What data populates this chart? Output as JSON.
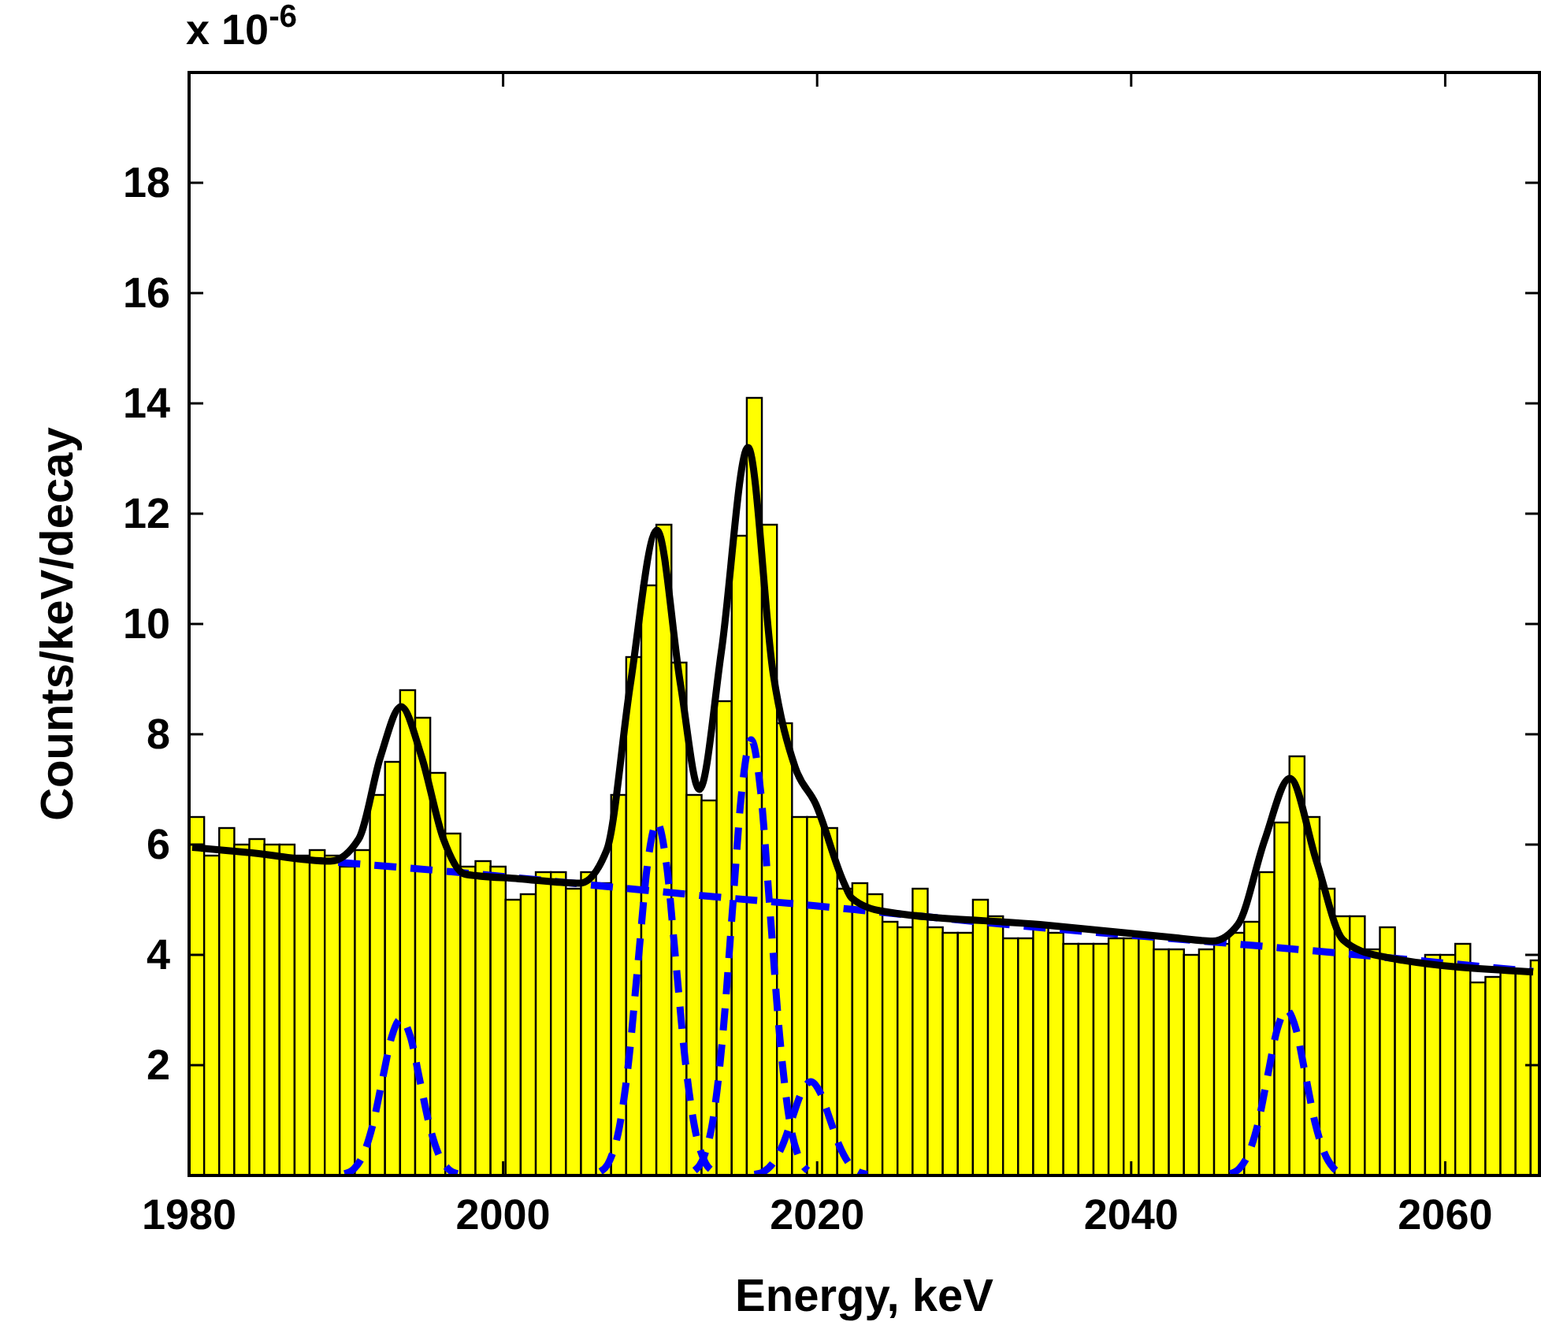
{
  "chart_data": {
    "type": "histogram",
    "xlabel": "Energy, keV",
    "ylabel": "Counts/keV/decay",
    "annotations": [
      "x 10$^{-6}$"
    ],
    "color": "#ffff00",
    "bins": [
      1980,
      1980.96,
      1981.92,
      1982.88,
      1983.84,
      1984.8,
      1985.76,
      1986.72,
      1987.68,
      1988.64,
      1989.6,
      1990.56,
      1991.52,
      1992.48,
      1993.44,
      1994.4,
      1995.36,
      1996.32,
      1997.28,
      1998.24,
      1999.2,
      2000.16,
      2001.12,
      2002.08,
      2003.04,
      2004,
      2004.96,
      2005.92,
      2006.88,
      2007.84,
      2008.8,
      2009.76,
      2010.72,
      2011.68,
      2012.64,
      2013.6,
      2014.56,
      2015.52,
      2016.48,
      2017.44,
      2018.4,
      2019.36,
      2020.32,
      2021.28,
      2022.24,
      2023.2,
      2024.16,
      2025.12,
      2026.08,
      2027.04,
      2028,
      2028.96,
      2029.92,
      2030.88,
      2031.84,
      2032.8,
      2033.76,
      2034.72,
      2035.68,
      2036.64,
      2037.6,
      2038.56,
      2039.52,
      2040.48,
      2041.44,
      2042.4,
      2043.36,
      2044.32,
      2045.28,
      2046.24,
      2047.2,
      2048.16,
      2049.12,
      2050.08,
      2051.04,
      2052,
      2052.96,
      2053.92,
      2054.88,
      2055.84,
      2056.8,
      2057.76,
      2058.72,
      2059.68,
      2060.64,
      2061.6,
      2062.56,
      2063.52,
      2064.48,
      2065.44,
      2066
    ],
    "values": [
      6.5,
      5.8,
      6.3,
      6.0,
      6.1,
      6.0,
      6.0,
      5.8,
      5.9,
      5.8,
      5.6,
      5.9,
      6.9,
      7.5,
      8.8,
      8.3,
      7.3,
      6.2,
      5.6,
      5.7,
      5.6,
      5.0,
      5.1,
      5.5,
      5.5,
      5.2,
      5.5,
      5.3,
      6.9,
      9.4,
      10.7,
      11.8,
      9.3,
      6.9,
      6.8,
      8.6,
      11.6,
      14.1,
      11.8,
      8.2,
      6.5,
      6.5,
      6.3,
      5.2,
      5.3,
      5.1,
      4.6,
      4.5,
      5.2,
      4.5,
      4.4,
      4.4,
      5.0,
      4.7,
      4.3,
      4.3,
      4.5,
      4.4,
      4.2,
      4.2,
      4.2,
      4.3,
      4.3,
      4.3,
      4.1,
      4.1,
      4.0,
      4.1,
      4.2,
      4.4,
      4.6,
      5.5,
      6.4,
      7.6,
      6.5,
      5.2,
      4.7,
      4.7,
      4.1,
      4.5,
      3.9,
      3.9,
      4.0,
      4.0,
      4.2,
      3.5,
      3.6,
      3.7,
      3.7,
      3.9
    ],
    "series": [
      {
        "type": "line",
        "color": "#0000ff",
        "line_style": "dashed",
        "x": [
          1989.5,
          1997,
          2006.6,
          2013.2,
          2019.9,
          2022.4,
          2034,
          2047.8,
          2065.6
        ],
        "values": [
          5.68,
          5.5,
          5.24,
          5.06,
          4.89,
          4.82,
          4.5,
          4.17,
          3.7
        ]
      },
      {
        "type": "line",
        "color": "#0000ff",
        "line_style": "dashed",
        "x": [
          1989.9,
          1990.5,
          1991.1,
          1991.7,
          1992.3,
          1992.9,
          1993.5,
          1994.1,
          1994.7,
          1995.3,
          1995.9,
          1996.5,
          1997.1
        ],
        "values": [
          0.03,
          0.12,
          0.38,
          0.92,
          1.72,
          2.51,
          2.84,
          2.51,
          1.72,
          0.92,
          0.38,
          0.12,
          0.03
        ]
      },
      {
        "type": "line",
        "color": "#0000ff",
        "line_style": "dashed",
        "x": [
          2006.2,
          2006.8,
          2007.4,
          2008,
          2008.6,
          2009.2,
          2009.8,
          2010.4,
          2011,
          2011.6,
          2012.2,
          2012.8,
          2013.4
        ],
        "values": [
          0.07,
          0.28,
          0.87,
          2.08,
          3.88,
          5.65,
          6.4,
          5.65,
          3.88,
          2.08,
          0.87,
          0.28,
          0.07
        ]
      },
      {
        "type": "line",
        "color": "#0000ff",
        "line_style": "dashed",
        "x": [
          2012.2,
          2012.8,
          2013.4,
          2014,
          2014.6,
          2015.2,
          2015.8,
          2016.4,
          2017,
          2017.6,
          2018.2,
          2018.8,
          2019.4
        ],
        "values": [
          0.09,
          0.35,
          1.07,
          2.57,
          4.79,
          6.97,
          7.9,
          6.97,
          4.79,
          2.57,
          1.07,
          0.35,
          0.09
        ]
      },
      {
        "type": "line",
        "color": "#0000ff",
        "line_style": "dashed",
        "x": [
          2016,
          2016.6,
          2017.2,
          2017.8,
          2018.4,
          2019,
          2019.6,
          2020.2,
          2020.8,
          2021.4,
          2022,
          2022.6,
          2023.2
        ],
        "values": [
          0.02,
          0.07,
          0.23,
          0.55,
          1.03,
          1.5,
          1.7,
          1.5,
          1.03,
          0.55,
          0.23,
          0.07,
          0.02
        ]
      },
      {
        "type": "line",
        "color": "#0000ff",
        "line_style": "dashed",
        "x": [
          2046.3,
          2046.9,
          2047.5,
          2048.1,
          2048.7,
          2049.3,
          2049.9,
          2050.5,
          2051.1,
          2051.7,
          2052.3,
          2052.9,
          2053.5
        ],
        "values": [
          0.03,
          0.13,
          0.41,
          0.97,
          1.82,
          2.65,
          3.0,
          2.65,
          1.82,
          0.97,
          0.41,
          0.13,
          0.03
        ]
      },
      {
        "type": "line",
        "color": "#000000",
        "line_style": "solid",
        "x": [
          1980.2,
          1984,
          1989,
          1990.8,
          1992.2,
          1993.5,
          1994.8,
          1996.2,
          1997.6,
          2001,
          2004.9,
          2006.6,
          2008.1,
          2009.8,
          2011.3,
          2012.5,
          2013.9,
          2015.6,
          2017.2,
          2018.6,
          2019.9,
          2021.7,
          2022.2,
          2024.2,
          2034.2,
          2042.8,
          2045.2,
          2046.8,
          2048.5,
          2050.1,
          2051.8,
          2053.5,
          2055.8,
          2065.6
        ],
        "values": [
          5.95,
          5.85,
          5.7,
          6.1,
          7.6,
          8.5,
          7.6,
          6.1,
          5.46,
          5.38,
          5.3,
          5.9,
          8.9,
          11.7,
          8.9,
          7.0,
          9.5,
          13.2,
          9.1,
          7.4,
          6.74,
          5.31,
          5.03,
          4.79,
          4.55,
          4.31,
          4.25,
          4.55,
          6.08,
          7.2,
          5.7,
          4.27,
          3.98,
          3.69
        ]
      }
    ],
    "xlim": [
      1980,
      2066
    ],
    "xticks": [
      1980,
      2000,
      2020,
      2040,
      2060
    ],
    "ylim": [
      0,
      20
    ],
    "yticks": [
      {
        "value": 0,
        "label": null
      },
      2,
      4,
      6,
      8,
      10,
      12,
      14,
      16,
      18
    ],
    "grid": false
  }
}
